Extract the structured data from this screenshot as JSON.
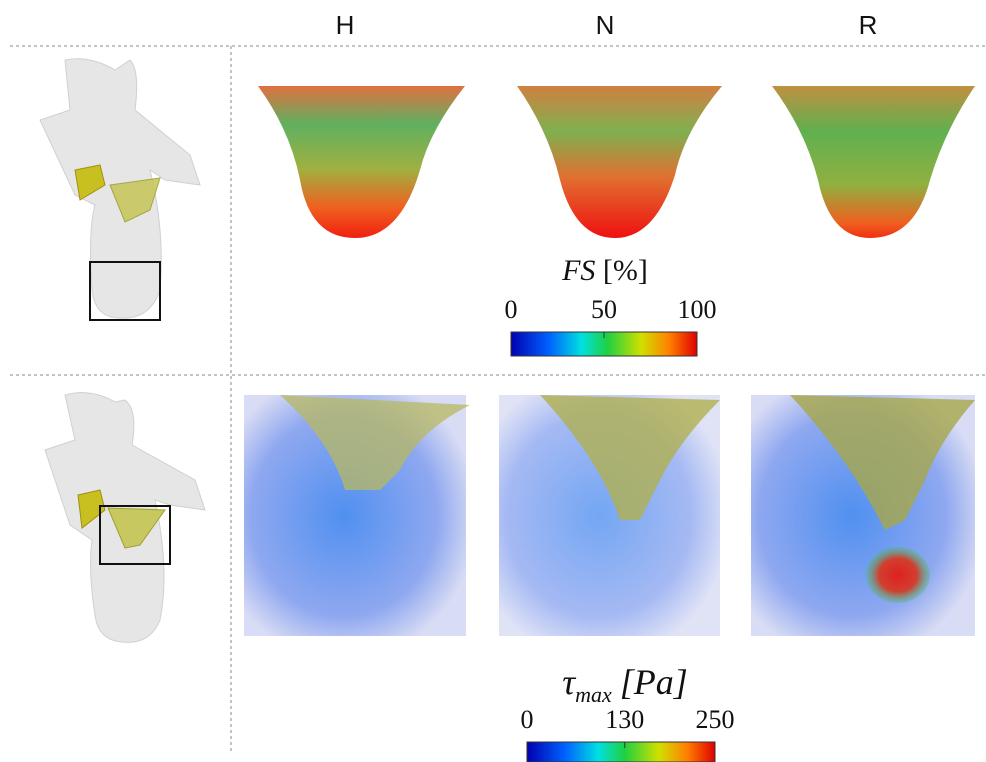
{
  "columns": [
    "H",
    "N",
    "R"
  ],
  "colorbars": [
    {
      "symbol": "FS",
      "unit": "[%]",
      "ticks": [
        0,
        50,
        100
      ]
    },
    {
      "symbol": "τ",
      "subscript": "max",
      "unit": "[Pa]",
      "ticks": [
        0,
        130,
        250
      ]
    }
  ]
}
